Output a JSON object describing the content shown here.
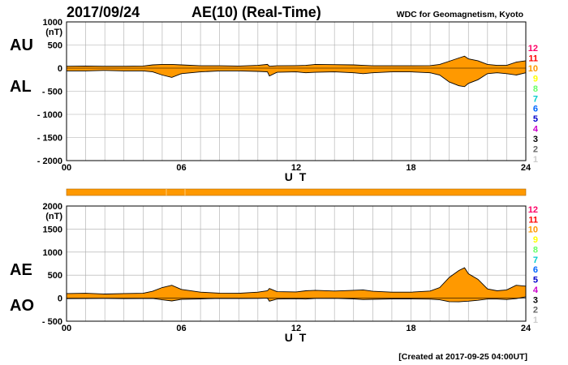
{
  "header": {
    "date": "2017/09/24",
    "title": "AE(10) (Real-Time)",
    "source": "WDC for Geomagnetism, Kyoto"
  },
  "footer": {
    "created": "[Created at 2017-09-25 04:00UT]"
  },
  "colors": {
    "fill": "#ff9900",
    "grid": "#aaaaaa",
    "stations": [
      "#ff0066",
      "#ff0000",
      "#ff9900",
      "#ffff00",
      "#66ff66",
      "#00cccc",
      "#0066ff",
      "#0000cc",
      "#cc00cc",
      "#000000",
      "#666666",
      "#cccccc"
    ]
  },
  "legend_numbers": [
    "12",
    "11",
    "10",
    "9",
    "8",
    "7",
    "6",
    "5",
    "4",
    "3",
    "2",
    "1"
  ],
  "chart_data": [
    {
      "type": "area",
      "id": "au-al",
      "title": "AU / AL",
      "unit_label": "(nT)",
      "side_labels": [
        "AU",
        "AL"
      ],
      "xlabel": "U T",
      "xlim": [
        0,
        24
      ],
      "x_ticks": [
        "00",
        "06",
        "12",
        "18",
        "24"
      ],
      "ylim": [
        -2000,
        1000
      ],
      "y_ticks": [
        "1000",
        "500",
        "0",
        "- 500",
        "- 1000",
        "- 1500",
        "- 2000"
      ],
      "x": [
        0,
        1,
        2,
        3,
        4,
        4.5,
        5,
        5.5,
        6,
        7,
        8,
        9,
        10,
        10.5,
        10.6,
        11,
        12,
        12.5,
        13,
        14,
        15,
        15.5,
        16,
        17,
        18,
        19,
        19.5,
        20,
        20.5,
        20.8,
        21,
        21.5,
        22,
        22.5,
        23,
        23.5,
        24
      ],
      "series": [
        {
          "name": "AU",
          "values": [
            40,
            45,
            40,
            40,
            45,
            70,
            80,
            80,
            70,
            50,
            50,
            45,
            60,
            80,
            40,
            50,
            55,
            60,
            80,
            75,
            70,
            60,
            50,
            50,
            50,
            55,
            80,
            150,
            220,
            260,
            200,
            160,
            80,
            60,
            60,
            130,
            160
          ]
        },
        {
          "name": "AL",
          "values": [
            -60,
            -60,
            -50,
            -60,
            -60,
            -80,
            -150,
            -200,
            -120,
            -80,
            -60,
            -60,
            -70,
            -80,
            -170,
            -90,
            -80,
            -100,
            -90,
            -80,
            -100,
            -120,
            -100,
            -80,
            -80,
            -100,
            -150,
            -300,
            -380,
            -400,
            -330,
            -250,
            -120,
            -100,
            -120,
            -150,
            -100
          ]
        }
      ]
    },
    {
      "type": "area",
      "id": "ae-ao",
      "title": "AE / AO",
      "unit_label": "(nT)",
      "side_labels": [
        "AE",
        "AO"
      ],
      "xlabel": "U T",
      "xlim": [
        0,
        24
      ],
      "x_ticks": [
        "00",
        "06",
        "12",
        "18",
        "24"
      ],
      "ylim": [
        -500,
        2000
      ],
      "y_ticks": [
        "2000",
        "1500",
        "1000",
        "500",
        "0",
        "- 500"
      ],
      "x": [
        0,
        1,
        2,
        3,
        4,
        4.5,
        5,
        5.5,
        6,
        7,
        8,
        9,
        10,
        10.5,
        10.6,
        11,
        12,
        12.5,
        13,
        14,
        15,
        15.5,
        16,
        17,
        18,
        19,
        19.5,
        20,
        20.5,
        20.8,
        21,
        21.5,
        22,
        22.5,
        23,
        23.5,
        24
      ],
      "series": [
        {
          "name": "AE",
          "values": [
            100,
            105,
            90,
            100,
            105,
            150,
            230,
            280,
            190,
            130,
            110,
            105,
            130,
            160,
            210,
            140,
            135,
            160,
            170,
            155,
            170,
            180,
            150,
            130,
            130,
            155,
            230,
            450,
            600,
            660,
            530,
            410,
            200,
            160,
            180,
            280,
            260
          ]
        },
        {
          "name": "AO",
          "values": [
            -10,
            -8,
            -5,
            -10,
            -8,
            -5,
            -35,
            -60,
            -25,
            -15,
            -5,
            -8,
            -5,
            0,
            -65,
            -20,
            -12,
            -20,
            -5,
            -3,
            -15,
            -30,
            -25,
            -15,
            -15,
            -22,
            -35,
            -75,
            -80,
            -70,
            -65,
            -45,
            -20,
            -20,
            -30,
            -10,
            30
          ]
        }
      ]
    }
  ]
}
